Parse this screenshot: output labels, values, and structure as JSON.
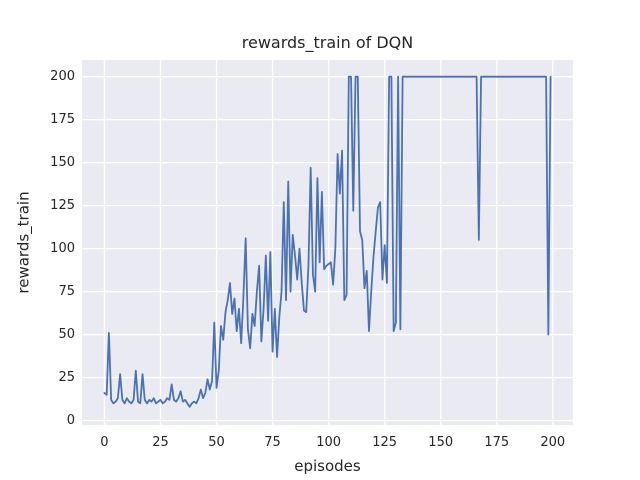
{
  "chart_data": {
    "type": "line",
    "title": "rewards_train of DQN",
    "xlabel": "episodes",
    "ylabel": "rewards_train",
    "x_is_index": true,
    "values": [
      16,
      15,
      51,
      12,
      10,
      11,
      13,
      27,
      12,
      10,
      13,
      11,
      10,
      12,
      29,
      11,
      10,
      27,
      12,
      10,
      12,
      11,
      13,
      10,
      11,
      12,
      10,
      11,
      13,
      12,
      21,
      12,
      11,
      13,
      17,
      11,
      12,
      10,
      8,
      10,
      11,
      10,
      13,
      18,
      13,
      16,
      24,
      18,
      23,
      57,
      19,
      29,
      55,
      47,
      63,
      70,
      80,
      62,
      71,
      52,
      65,
      45,
      72,
      106,
      53,
      42,
      62,
      55,
      75,
      90,
      46,
      65,
      96,
      58,
      98,
      40,
      65,
      37,
      60,
      75,
      127,
      70,
      139,
      75,
      108,
      96,
      82,
      100,
      80,
      64,
      63,
      90,
      147,
      85,
      75,
      141,
      92,
      133,
      88,
      90,
      91,
      92,
      79,
      100,
      155,
      132,
      157,
      70,
      73,
      200,
      200,
      122,
      200,
      200,
      110,
      105,
      77,
      87,
      52,
      75,
      95,
      110,
      124,
      127,
      82,
      102,
      80,
      200,
      200,
      52,
      57,
      200,
      53,
      200,
      200,
      200,
      200,
      200,
      200,
      200,
      200,
      200,
      200,
      200,
      200,
      200,
      200,
      200,
      200,
      200,
      200,
      200,
      200,
      200,
      200,
      200,
      200,
      200,
      200,
      200,
      200,
      200,
      200,
      200,
      200,
      200,
      200,
      105,
      200,
      200,
      200,
      200,
      200,
      200,
      200,
      200,
      200,
      200,
      200,
      200,
      200,
      200,
      200,
      200,
      200,
      200,
      200,
      200,
      200,
      200,
      200,
      200,
      200,
      200,
      200,
      200,
      200,
      200,
      50,
      200
    ],
    "xticks": [
      0,
      25,
      50,
      75,
      100,
      125,
      150,
      175,
      200
    ],
    "yticks": [
      0,
      25,
      50,
      75,
      100,
      125,
      150,
      175,
      200
    ],
    "xlim": [
      -10.0,
      209.0
    ],
    "ylim": [
      -2.6,
      209.7
    ],
    "grid": true,
    "legend_position": "none",
    "line_color": "#4c72b0",
    "plot_bg_color": "#eaeaf2",
    "grid_color": "#ffffff",
    "text_color": "#262626",
    "figure_bg_color": "#ffffff"
  }
}
